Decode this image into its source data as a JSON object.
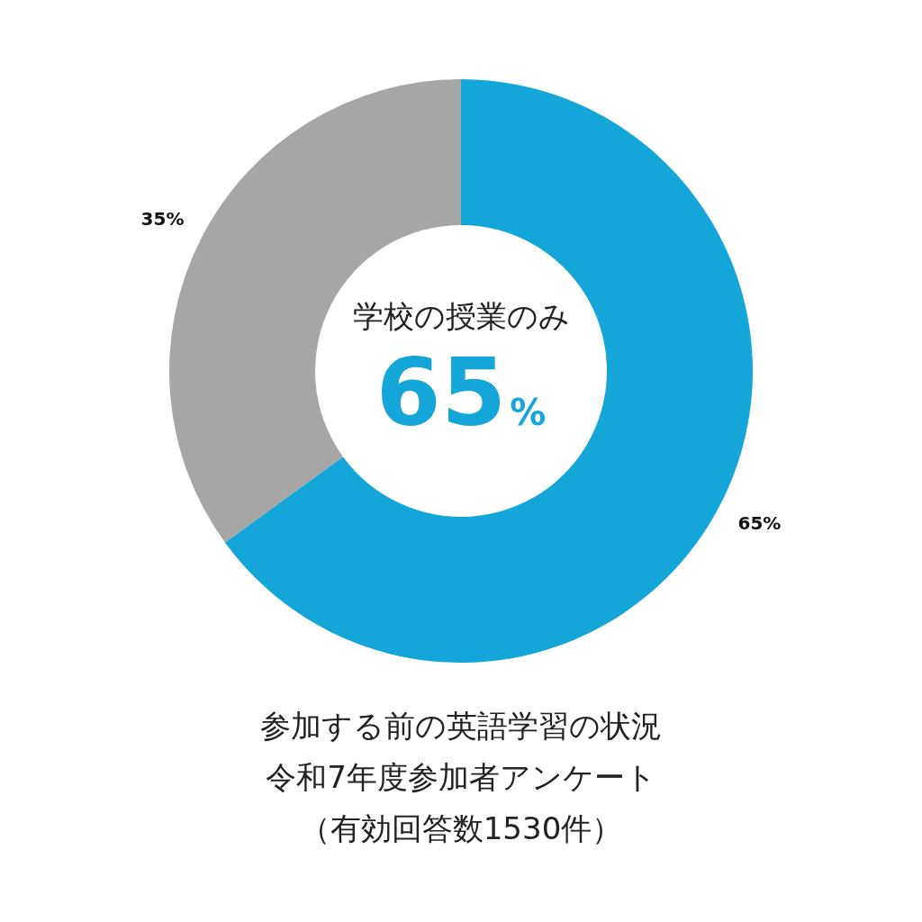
{
  "chart_data": {
    "type": "donut",
    "title": "参加する前の英語学習の状況",
    "subtitle": "令和7年度参加者アンケート",
    "categories": [
      "学校の授業のみ",
      null
    ],
    "values": [
      65,
      35
    ],
    "colors": [
      "#14a5d9",
      "#a6a6a6"
    ],
    "value_labels": [
      "65%",
      "35%"
    ],
    "annotations": [
      "65%",
      "（有効回答数1530件）"
    ]
  }
}
